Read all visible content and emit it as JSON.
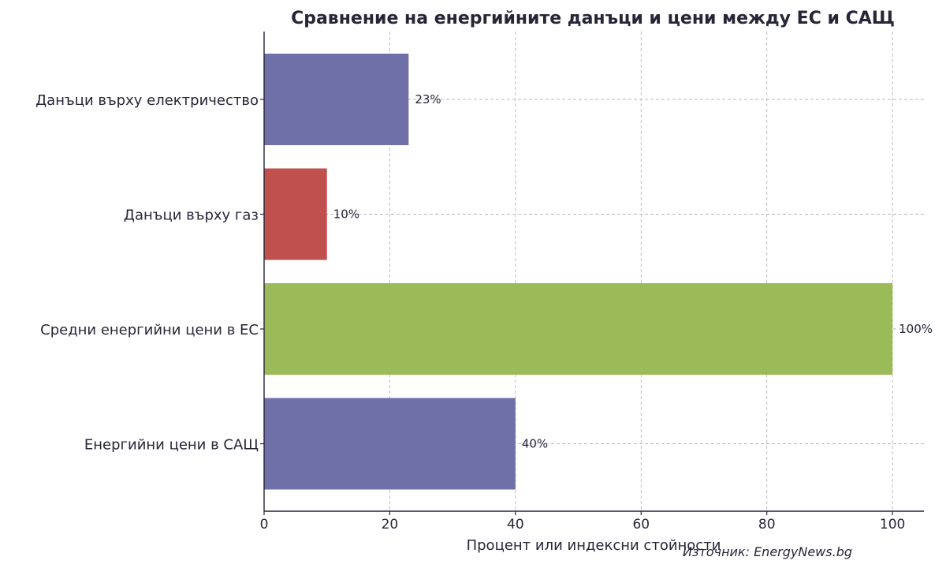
{
  "chart_data": {
    "type": "bar",
    "orientation": "horizontal",
    "title": "Сравнение на енергийните данъци и цени между ЕС и САЩ",
    "xlabel": "Процент или индексни стойности",
    "ylabel": "",
    "xlim": [
      0,
      105
    ],
    "xticks": [
      0,
      20,
      40,
      60,
      80,
      100
    ],
    "grid": true,
    "categories": [
      "Данъци върху електричество",
      "Данъци върху газ",
      "Средни енергийни цени в ЕС",
      "Енергийни цени в САЩ"
    ],
    "values": [
      23,
      10,
      100,
      40
    ],
    "value_labels": [
      "23%",
      "10%",
      "100%",
      "40%"
    ],
    "colors": [
      "#7070a8",
      "#c0504d",
      "#9bbb59",
      "#7070a8"
    ],
    "source": "Източник: EnergyNews.bg"
  }
}
